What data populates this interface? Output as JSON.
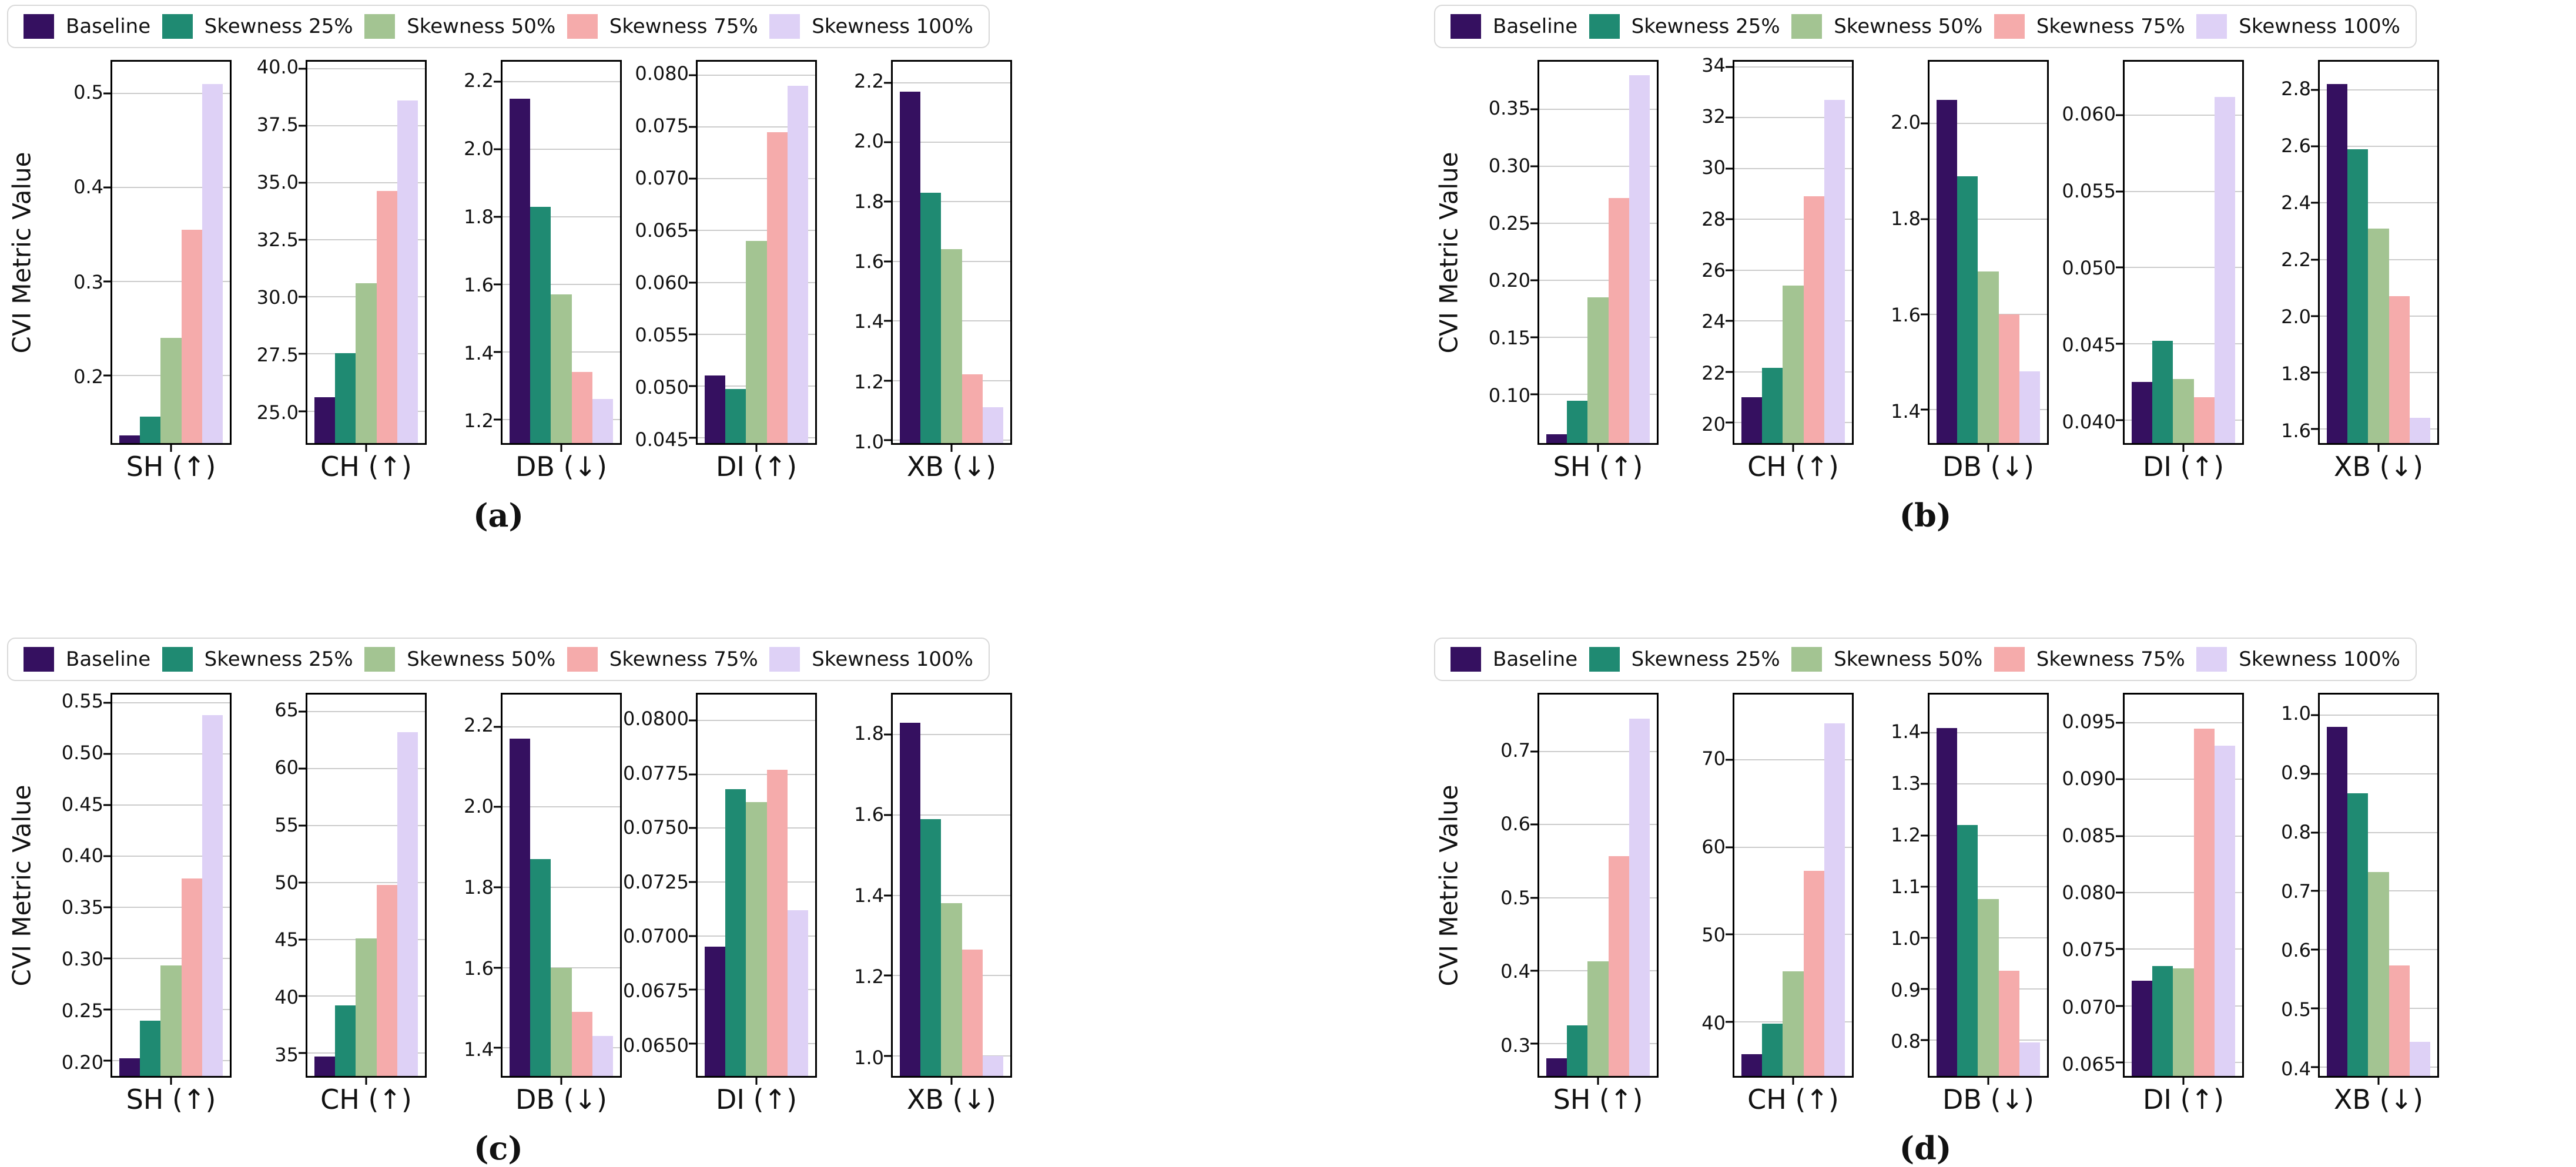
{
  "chart_data": {
    "type": "bar",
    "ylabel": "CVI Metric Value",
    "grid": "horizontal-only",
    "legend_position": "top",
    "series_names": [
      "Baseline",
      "Skewness 25%",
      "Skewness 50%",
      "Skewness 75%",
      "Skewness 100%"
    ],
    "series_colors": [
      "#351060",
      "#1f8a72",
      "#a3c492",
      "#f5abab",
      "#ded1f6"
    ],
    "panels": [
      {
        "caption": "(a)",
        "charts": [
          {
            "metric": "SH",
            "label": "SH (↑)",
            "direction": "higher-better",
            "ylim": [
              0.128,
              0.534
            ],
            "tick_values": [
              0.2,
              0.3,
              0.4,
              0.5
            ],
            "tick_labels": [
              "0.2",
              "0.3",
              "0.4",
              "0.5"
            ],
            "values": [
              0.136,
              0.156,
              0.24,
              0.355,
              0.51
            ]
          },
          {
            "metric": "CH",
            "label": "CH (↑)",
            "direction": "higher-better",
            "ylim": [
              23.6,
              40.3
            ],
            "tick_values": [
              25.0,
              27.5,
              30.0,
              32.5,
              35.0,
              37.5,
              40.0
            ],
            "tick_labels": [
              "25.0",
              "27.5",
              "30.0",
              "32.5",
              "35.0",
              "37.5",
              "40.0"
            ],
            "values": [
              25.6,
              27.55,
              30.6,
              34.65,
              38.6
            ]
          },
          {
            "metric": "DB",
            "label": "DB (↓)",
            "direction": "lower-better",
            "ylim": [
              1.13,
              2.26
            ],
            "tick_values": [
              1.2,
              1.4,
              1.6,
              1.8,
              2.0,
              2.2
            ],
            "tick_labels": [
              "1.2",
              "1.4",
              "1.6",
              "1.8",
              "2.0",
              "2.2"
            ],
            "values": [
              2.15,
              1.83,
              1.57,
              1.34,
              1.26
            ]
          },
          {
            "metric": "DI",
            "label": "DI (↑)",
            "direction": "higher-better",
            "ylim": [
              0.0445,
              0.0813
            ],
            "tick_values": [
              0.045,
              0.05,
              0.055,
              0.06,
              0.065,
              0.07,
              0.075,
              0.08
            ],
            "tick_labels": [
              "0.045",
              "0.050",
              "0.055",
              "0.060",
              "0.065",
              "0.070",
              "0.075",
              "0.080"
            ],
            "values": [
              0.051,
              0.0497,
              0.064,
              0.0745,
              0.079
            ]
          },
          {
            "metric": "XB",
            "label": "XB (↓)",
            "direction": "lower-better",
            "ylim": [
              0.99,
              2.27
            ],
            "tick_values": [
              1.0,
              1.2,
              1.4,
              1.6,
              1.8,
              2.0,
              2.2
            ],
            "tick_labels": [
              "1.0",
              "1.2",
              "1.4",
              "1.6",
              "1.8",
              "2.0",
              "2.2"
            ],
            "values": [
              2.17,
              1.83,
              1.64,
              1.22,
              1.11
            ]
          }
        ]
      },
      {
        "caption": "(b)",
        "charts": [
          {
            "metric": "SH",
            "label": "SH (↑)",
            "direction": "higher-better",
            "ylim": [
              0.057,
              0.392
            ],
            "tick_values": [
              0.1,
              0.15,
              0.2,
              0.25,
              0.3,
              0.35
            ],
            "tick_labels": [
              "0.10",
              "0.15",
              "0.20",
              "0.25",
              "0.30",
              "0.35"
            ],
            "values": [
              0.065,
              0.094,
              0.185,
              0.272,
              0.38
            ]
          },
          {
            "metric": "CH",
            "label": "CH (↑)",
            "direction": "higher-better",
            "ylim": [
              19.2,
              34.2
            ],
            "tick_values": [
              20,
              22,
              24,
              26,
              28,
              30,
              32,
              34
            ],
            "tick_labels": [
              "20",
              "22",
              "24",
              "26",
              "28",
              "30",
              "32",
              "34"
            ],
            "values": [
              21.0,
              22.15,
              25.4,
              28.9,
              32.7
            ]
          },
          {
            "metric": "DB",
            "label": "DB (↓)",
            "direction": "lower-better",
            "ylim": [
              1.33,
              2.13
            ],
            "tick_values": [
              1.4,
              1.6,
              1.8,
              2.0
            ],
            "tick_labels": [
              "1.4",
              "1.6",
              "1.8",
              "2.0"
            ],
            "values": [
              2.05,
              1.89,
              1.69,
              1.6,
              1.48
            ]
          },
          {
            "metric": "DI",
            "label": "DI (↑)",
            "direction": "higher-better",
            "ylim": [
              0.0385,
              0.0635
            ],
            "tick_values": [
              0.04,
              0.045,
              0.05,
              0.055,
              0.06
            ],
            "tick_labels": [
              "0.040",
              "0.045",
              "0.050",
              "0.055",
              "0.060"
            ],
            "values": [
              0.0425,
              0.0452,
              0.0427,
              0.0415,
              0.0612
            ]
          },
          {
            "metric": "XB",
            "label": "XB (↓)",
            "direction": "lower-better",
            "ylim": [
              1.55,
              2.9
            ],
            "tick_values": [
              1.6,
              1.8,
              2.0,
              2.2,
              2.4,
              2.6,
              2.8
            ],
            "tick_labels": [
              "1.6",
              "1.8",
              "2.0",
              "2.2",
              "2.4",
              "2.6",
              "2.8"
            ],
            "values": [
              2.82,
              2.59,
              2.31,
              2.07,
              1.64
            ]
          }
        ]
      },
      {
        "caption": "(c)",
        "charts": [
          {
            "metric": "SH",
            "label": "SH (↑)",
            "direction": "higher-better",
            "ylim": [
              0.185,
              0.558
            ],
            "tick_values": [
              0.2,
              0.25,
              0.3,
              0.35,
              0.4,
              0.45,
              0.5,
              0.55
            ],
            "tick_labels": [
              "0.20",
              "0.25",
              "0.30",
              "0.35",
              "0.40",
              "0.45",
              "0.50",
              "0.55"
            ],
            "values": [
              0.202,
              0.239,
              0.293,
              0.378,
              0.538
            ]
          },
          {
            "metric": "CH",
            "label": "CH (↑)",
            "direction": "higher-better",
            "ylim": [
              33.0,
              66.5
            ],
            "tick_values": [
              35,
              40,
              45,
              50,
              55,
              60,
              65
            ],
            "tick_labels": [
              "35",
              "40",
              "45",
              "50",
              "55",
              "60",
              "65"
            ],
            "values": [
              34.7,
              39.2,
              45.1,
              49.8,
              63.2
            ]
          },
          {
            "metric": "DB",
            "label": "DB (↓)",
            "direction": "lower-better",
            "ylim": [
              1.33,
              2.28
            ],
            "tick_values": [
              1.4,
              1.6,
              1.8,
              2.0,
              2.2
            ],
            "tick_labels": [
              "1.4",
              "1.6",
              "1.8",
              "2.0",
              "2.2"
            ],
            "values": [
              2.17,
              1.87,
              1.6,
              1.49,
              1.43
            ]
          },
          {
            "metric": "DI",
            "label": "DI (↑)",
            "direction": "higher-better",
            "ylim": [
              0.0635,
              0.0812
            ],
            "tick_values": [
              0.065,
              0.0675,
              0.07,
              0.0725,
              0.075,
              0.0775,
              0.08
            ],
            "tick_labels": [
              "0.0650",
              "0.0675",
              "0.0700",
              "0.0725",
              "0.0750",
              "0.0775",
              "0.0800"
            ],
            "values": [
              0.0695,
              0.0768,
              0.0762,
              0.0777,
              0.0712
            ]
          },
          {
            "metric": "XB",
            "label": "XB (↓)",
            "direction": "lower-better",
            "ylim": [
              0.95,
              1.9
            ],
            "tick_values": [
              1.0,
              1.2,
              1.4,
              1.6,
              1.8
            ],
            "tick_labels": [
              "1.0",
              "1.2",
              "1.4",
              "1.6",
              "1.8"
            ],
            "values": [
              1.83,
              1.59,
              1.38,
              1.265,
              1.0
            ]
          }
        ]
      },
      {
        "caption": "(d)",
        "charts": [
          {
            "metric": "SH",
            "label": "SH (↑)",
            "direction": "higher-better",
            "ylim": [
              0.256,
              0.778
            ],
            "tick_values": [
              0.3,
              0.4,
              0.5,
              0.6,
              0.7
            ],
            "tick_labels": [
              "0.3",
              "0.4",
              "0.5",
              "0.6",
              "0.7"
            ],
            "values": [
              0.28,
              0.325,
              0.413,
              0.557,
              0.745
            ]
          },
          {
            "metric": "CH",
            "label": "CH (↑)",
            "direction": "higher-better",
            "ylim": [
              33.8,
              77.5
            ],
            "tick_values": [
              40,
              50,
              60,
              70
            ],
            "tick_labels": [
              "40",
              "50",
              "60",
              "70"
            ],
            "values": [
              36.3,
              39.8,
              45.8,
              57.3,
              74.2
            ]
          },
          {
            "metric": "DB",
            "label": "DB (↓)",
            "direction": "lower-better",
            "ylim": [
              0.73,
              1.475
            ],
            "tick_values": [
              0.8,
              0.9,
              1.0,
              1.1,
              1.2,
              1.3,
              1.4
            ],
            "tick_labels": [
              "0.8",
              "0.9",
              "1.0",
              "1.1",
              "1.2",
              "1.3",
              "1.4"
            ],
            "values": [
              1.41,
              1.22,
              1.075,
              0.935,
              0.795
            ]
          },
          {
            "metric": "DI",
            "label": "DI (↑)",
            "direction": "higher-better",
            "ylim": [
              0.0638,
              0.0975
            ],
            "tick_values": [
              0.065,
              0.07,
              0.075,
              0.08,
              0.085,
              0.09,
              0.095
            ],
            "tick_labels": [
              "0.065",
              "0.070",
              "0.075",
              "0.080",
              "0.085",
              "0.090",
              "0.095"
            ],
            "values": [
              0.0722,
              0.0735,
              0.0733,
              0.0945,
              0.093
            ]
          },
          {
            "metric": "XB",
            "label": "XB (↓)",
            "direction": "lower-better",
            "ylim": [
              0.385,
              1.035
            ],
            "tick_values": [
              0.4,
              0.5,
              0.6,
              0.7,
              0.8,
              0.9,
              1.0
            ],
            "tick_labels": [
              "0.4",
              "0.5",
              "0.6",
              "0.7",
              "0.8",
              "0.9",
              "1.0"
            ],
            "values": [
              0.98,
              0.867,
              0.733,
              0.573,
              0.443
            ]
          }
        ]
      }
    ],
    "colors": {
      "grid": "#cccccc",
      "axis": "#000000",
      "legend_border": "#d9d9d9",
      "background": "#ffffff"
    }
  }
}
